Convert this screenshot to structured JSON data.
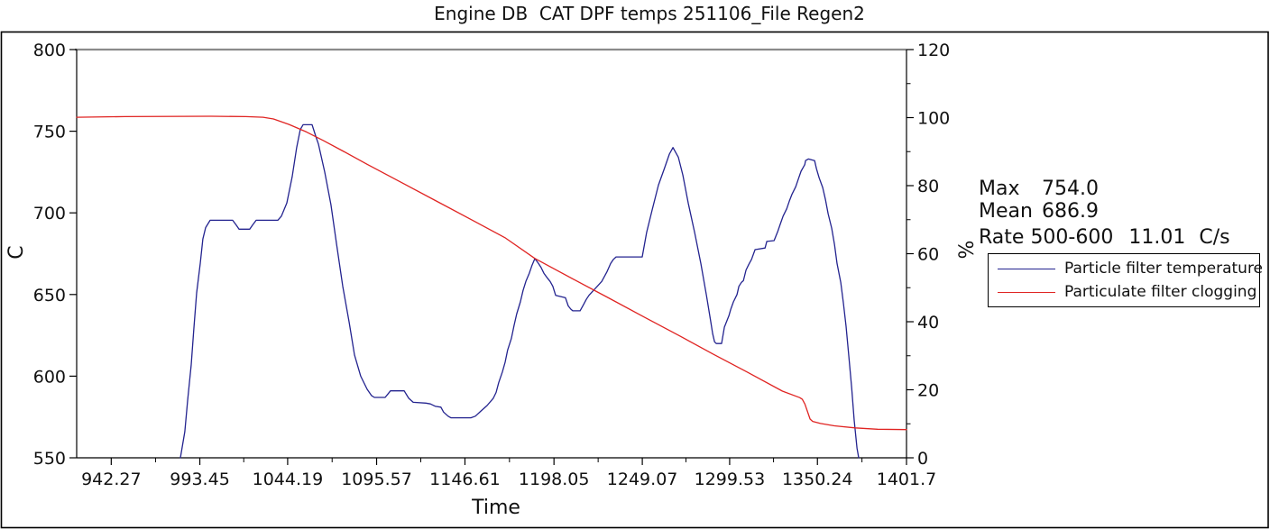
{
  "title": "Engine DB  CAT DPF temps 251106_File Regen2",
  "stats": {
    "max_label": "Max",
    "max_value": "754.0",
    "mean_label": "Mean",
    "mean_value": "686.9",
    "rate_label": "Rate 500-600",
    "rate_value": "11.01",
    "rate_unit": "C/s"
  },
  "legend": [
    {
      "label": "Particle filter temperature",
      "color": "#23238f"
    },
    {
      "label": "Particulate filter clogging",
      "color": "#e02422"
    }
  ],
  "colors": {
    "frame_border": "#000000",
    "plot_top_border": "#8a8a8a",
    "axis": "#000000",
    "text": "#111111",
    "temperature_line": "#23238f",
    "clogging_line": "#e02422",
    "background": "#ffffff"
  },
  "chart_data": {
    "type": "line",
    "title": "Engine DB  CAT DPF temps 251106_File Regen2",
    "xlabel": "Time",
    "ylabel_left": "C",
    "ylabel_right": "%",
    "x_range": [
      922.3,
      1401.7
    ],
    "y_left_range": [
      550,
      800
    ],
    "y_right_range": [
      0,
      120
    ],
    "grid": false,
    "legend_position": "outside-right",
    "x_ticks": [
      942.27,
      993.45,
      1044.19,
      1095.57,
      1146.61,
      1198.05,
      1249.07,
      1299.53,
      1350.24,
      1401.7
    ],
    "x_tick_labels": [
      "942.27",
      "993.45",
      "1044.19",
      "1095.57",
      "1146.61",
      "1198.05",
      "1249.07",
      "1299.53",
      "1350.24",
      "1401.7"
    ],
    "x_minor_ticks_at_midpoints": true,
    "y_left_ticks": [
      550,
      600,
      650,
      700,
      750,
      800
    ],
    "y_right_ticks": [
      0,
      20,
      40,
      60,
      80,
      100,
      120
    ],
    "y_right_minor_ticks": [
      10,
      30,
      50,
      70,
      90,
      110
    ],
    "annotations": {
      "max": 754.0,
      "mean": 686.9,
      "rate_500_600_C_per_s": 11.01
    },
    "series": [
      {
        "name": "Particle filter temperature",
        "axis": "left",
        "color": "#23238f",
        "points": [
          [
            982.2,
            550
          ],
          [
            984.8,
            566
          ],
          [
            986.4,
            585
          ],
          [
            988.5,
            607
          ],
          [
            990,
            629
          ],
          [
            991.6,
            651
          ],
          [
            993.7,
            669
          ],
          [
            995.2,
            684
          ],
          [
            996.8,
            691
          ],
          [
            999.4,
            695.5
          ],
          [
            1012.4,
            695.5
          ],
          [
            1014.5,
            692.5
          ],
          [
            1016.1,
            690
          ],
          [
            1022.3,
            690
          ],
          [
            1023.9,
            692.5
          ],
          [
            1026,
            695.5
          ],
          [
            1038.5,
            695.5
          ],
          [
            1040.6,
            698
          ],
          [
            1043.7,
            706
          ],
          [
            1046.8,
            722
          ],
          [
            1049.4,
            740
          ],
          [
            1051.5,
            751
          ],
          [
            1053.1,
            754
          ],
          [
            1058.3,
            754
          ],
          [
            1060.4,
            747
          ],
          [
            1062,
            742
          ],
          [
            1065.6,
            725
          ],
          [
            1069.2,
            705
          ],
          [
            1072.4,
            681
          ],
          [
            1076,
            655
          ],
          [
            1079.7,
            633
          ],
          [
            1082.8,
            613
          ],
          [
            1086.4,
            600
          ],
          [
            1090.1,
            592
          ],
          [
            1092.7,
            588
          ],
          [
            1094.3,
            587
          ],
          [
            1100.5,
            587
          ],
          [
            1102.1,
            589
          ],
          [
            1103.6,
            591
          ],
          [
            1111.5,
            591
          ],
          [
            1114.1,
            586.5
          ],
          [
            1116.7,
            584
          ],
          [
            1124,
            583.5
          ],
          [
            1126.6,
            583
          ],
          [
            1129.6,
            581.5
          ],
          [
            1132.7,
            581
          ],
          [
            1134.3,
            578
          ],
          [
            1136.9,
            575.5
          ],
          [
            1138.5,
            574.5
          ],
          [
            1150,
            574.5
          ],
          [
            1152.6,
            575.5
          ],
          [
            1155.7,
            578.5
          ],
          [
            1159.4,
            582
          ],
          [
            1163,
            586.5
          ],
          [
            1164.6,
            590
          ],
          [
            1166.1,
            596
          ],
          [
            1168.2,
            602.5
          ],
          [
            1169.8,
            608.5
          ],
          [
            1171.3,
            616
          ],
          [
            1173.4,
            623
          ],
          [
            1175,
            631
          ],
          [
            1176.5,
            638
          ],
          [
            1178.6,
            645.5
          ],
          [
            1180.2,
            652.5
          ],
          [
            1181.8,
            658
          ],
          [
            1183.8,
            663
          ],
          [
            1185.4,
            668
          ],
          [
            1187,
            672
          ],
          [
            1189.1,
            669
          ],
          [
            1190.6,
            666.5
          ],
          [
            1192.2,
            663
          ],
          [
            1194.3,
            660
          ],
          [
            1195.8,
            658
          ],
          [
            1197.4,
            655
          ],
          [
            1199,
            649.5
          ],
          [
            1204.7,
            648
          ],
          [
            1206.3,
            643
          ],
          [
            1207.8,
            641
          ],
          [
            1208.9,
            640
          ],
          [
            1213.1,
            640
          ],
          [
            1215.2,
            644
          ],
          [
            1216.7,
            647
          ],
          [
            1218.3,
            649.5
          ],
          [
            1220.4,
            652
          ],
          [
            1223.5,
            655.5
          ],
          [
            1225.6,
            658
          ],
          [
            1228.7,
            664
          ],
          [
            1230.8,
            669
          ],
          [
            1232.4,
            671.5
          ],
          [
            1233.9,
            673
          ],
          [
            1249,
            673
          ],
          [
            1251.6,
            688
          ],
          [
            1254.8,
            702
          ],
          [
            1258.4,
            717
          ],
          [
            1262.1,
            728
          ],
          [
            1264.7,
            736
          ],
          [
            1266.8,
            740
          ],
          [
            1269.9,
            734
          ],
          [
            1272.5,
            723
          ],
          [
            1275.6,
            706
          ],
          [
            1279.3,
            688
          ],
          [
            1282.9,
            669
          ],
          [
            1286.1,
            649.5
          ],
          [
            1288.7,
            633
          ],
          [
            1289.7,
            626
          ],
          [
            1290.8,
            621
          ],
          [
            1291.8,
            620
          ],
          [
            1294.9,
            620
          ],
          [
            1296.5,
            630
          ],
          [
            1299.1,
            637
          ],
          [
            1300.2,
            641
          ],
          [
            1301.7,
            645.5
          ],
          [
            1303.8,
            650
          ],
          [
            1304.9,
            655
          ],
          [
            1306.4,
            657.5
          ],
          [
            1307.5,
            658.5
          ],
          [
            1309,
            665
          ],
          [
            1310.6,
            668.5
          ],
          [
            1312.2,
            671.5
          ],
          [
            1314.2,
            677.5
          ],
          [
            1320,
            678.5
          ],
          [
            1321,
            682.5
          ],
          [
            1325.2,
            683
          ],
          [
            1327.3,
            688.5
          ],
          [
            1328.9,
            693.5
          ],
          [
            1330.4,
            698
          ],
          [
            1332.5,
            702.5
          ],
          [
            1334.1,
            707.5
          ],
          [
            1335.6,
            711.5
          ],
          [
            1337.7,
            716
          ],
          [
            1339.3,
            721
          ],
          [
            1340.8,
            725.5
          ],
          [
            1342.9,
            729.5
          ],
          [
            1343.4,
            732
          ],
          [
            1345,
            733
          ],
          [
            1348.6,
            732
          ],
          [
            1349.7,
            727
          ],
          [
            1351.2,
            721.5
          ],
          [
            1353.3,
            715.5
          ],
          [
            1354.9,
            708
          ],
          [
            1356.4,
            699.5
          ],
          [
            1358.5,
            690.5
          ],
          [
            1360.1,
            680.5
          ],
          [
            1361.6,
            669
          ],
          [
            1363.7,
            657.5
          ],
          [
            1365.3,
            644.5
          ],
          [
            1366.8,
            630.5
          ],
          [
            1368.4,
            612
          ],
          [
            1370,
            593
          ],
          [
            1371.5,
            573
          ],
          [
            1373.1,
            556
          ],
          [
            1374.1,
            550
          ]
        ]
      },
      {
        "name": "Particulate filter clogging",
        "axis": "right",
        "color": "#e02422",
        "points": [
          [
            922.3,
            100.1
          ],
          [
            950,
            100.3
          ],
          [
            1000,
            100.4
          ],
          [
            1020,
            100.3
          ],
          [
            1030,
            100.1
          ],
          [
            1036,
            99.6
          ],
          [
            1045,
            98
          ],
          [
            1055,
            95.8
          ],
          [
            1065,
            93.2
          ],
          [
            1076,
            90.2
          ],
          [
            1090,
            86.3
          ],
          [
            1110,
            80.9
          ],
          [
            1130,
            75.5
          ],
          [
            1150,
            70.1
          ],
          [
            1170,
            64.6
          ],
          [
            1187,
            58.6
          ],
          [
            1210,
            52.3
          ],
          [
            1230,
            46.9
          ],
          [
            1250,
            41.4
          ],
          [
            1270,
            36
          ],
          [
            1290,
            30.5
          ],
          [
            1310,
            25.1
          ],
          [
            1330,
            19.6
          ],
          [
            1340,
            17.7
          ],
          [
            1341.5,
            17.2
          ],
          [
            1343,
            15.8
          ],
          [
            1346,
            11.4
          ],
          [
            1347.5,
            10.7
          ],
          [
            1352,
            10.1
          ],
          [
            1360,
            9.4
          ],
          [
            1372,
            8.8
          ],
          [
            1385,
            8.4
          ],
          [
            1401.7,
            8.3
          ]
        ]
      }
    ]
  }
}
